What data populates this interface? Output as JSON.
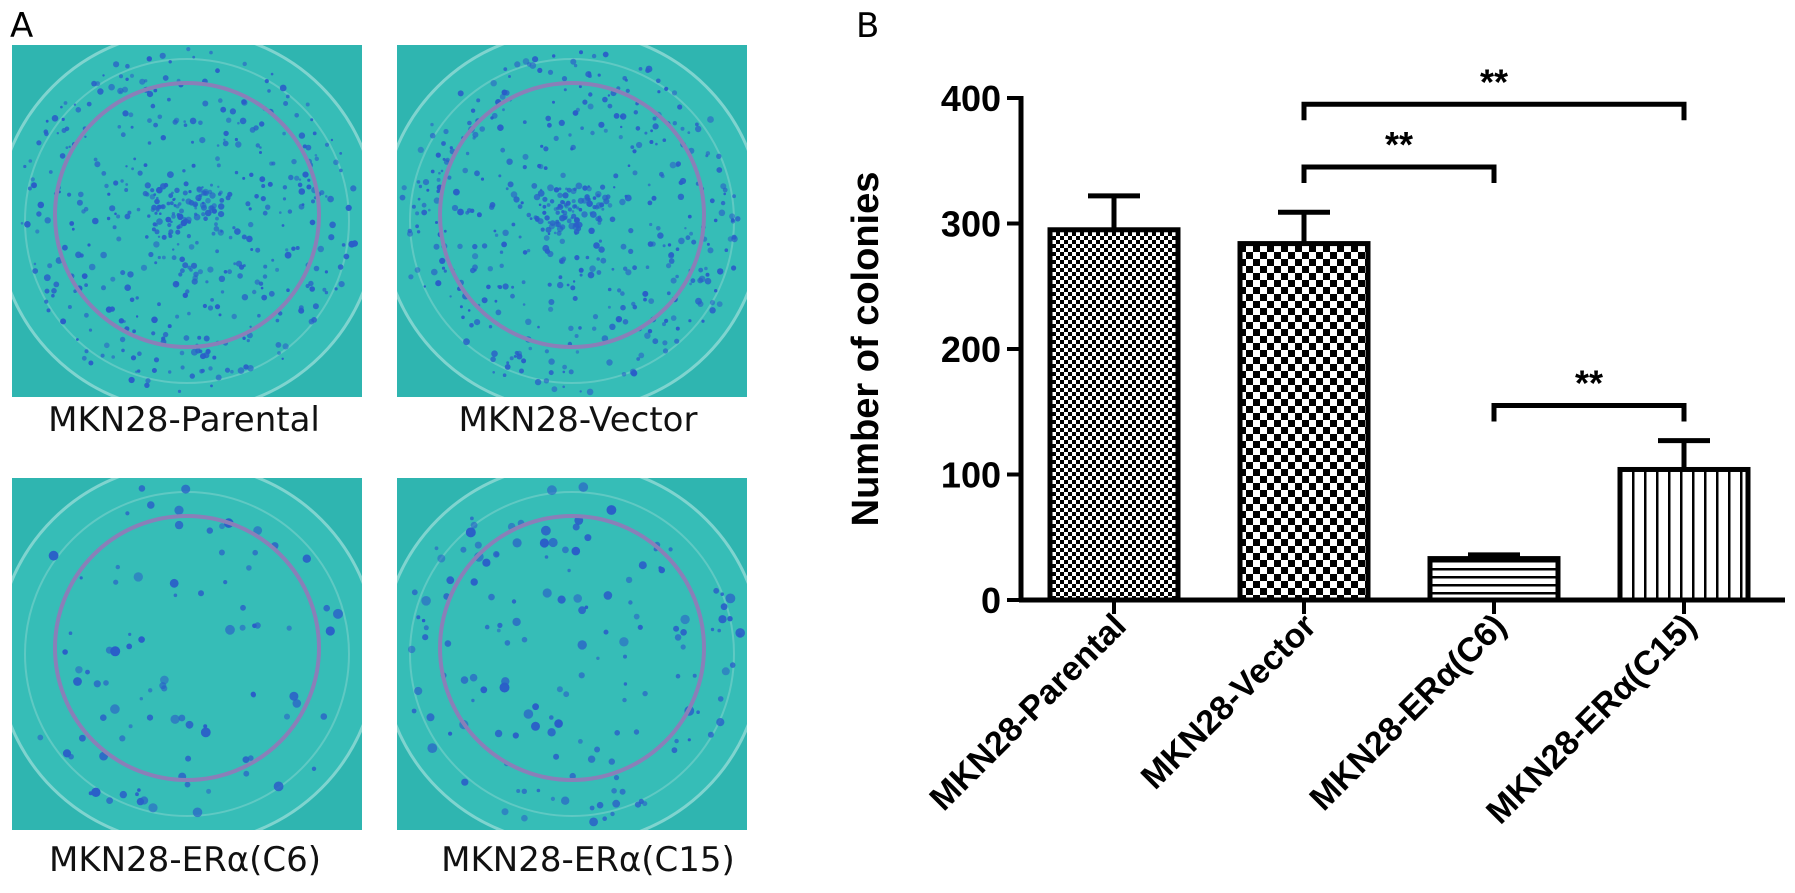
{
  "panel_a": {
    "letter": "A",
    "plates": [
      {
        "label": "MKN28-Parental",
        "colony_density": "high"
      },
      {
        "label": "MKN28-Vector",
        "colony_density": "high"
      },
      {
        "label": "MKN28-ERα(C6)",
        "colony_density": "low"
      },
      {
        "label": "MKN28-ERα(C15)",
        "colony_density": "medium"
      }
    ],
    "colors": {
      "background": "#2fb5b0",
      "rim": "#8a7fb8",
      "colony": "#2a5ec8"
    }
  },
  "panel_b": {
    "letter": "B"
  },
  "chart_data": {
    "type": "bar",
    "categories": [
      "MKN28-Parental",
      "MKN28-Vector",
      "MKN28-ERα(C6)",
      "MKN28-ERα(C15)"
    ],
    "values": [
      295,
      284,
      33,
      104
    ],
    "errors": [
      27,
      25,
      3,
      23
    ],
    "patterns": [
      "fine-checker",
      "coarse-checker",
      "horizontal-lines",
      "vertical-lines"
    ],
    "title": "",
    "xlabel": "",
    "ylabel": "Number of colonies",
    "ylim": [
      0,
      400
    ],
    "yticks": [
      0,
      100,
      200,
      300,
      400
    ],
    "grid": false,
    "significance": [
      {
        "from": 1,
        "to": 3,
        "label": "**"
      },
      {
        "from": 1,
        "to": 2,
        "label": "**"
      },
      {
        "from": 2,
        "to": 3,
        "label": "**"
      }
    ]
  }
}
